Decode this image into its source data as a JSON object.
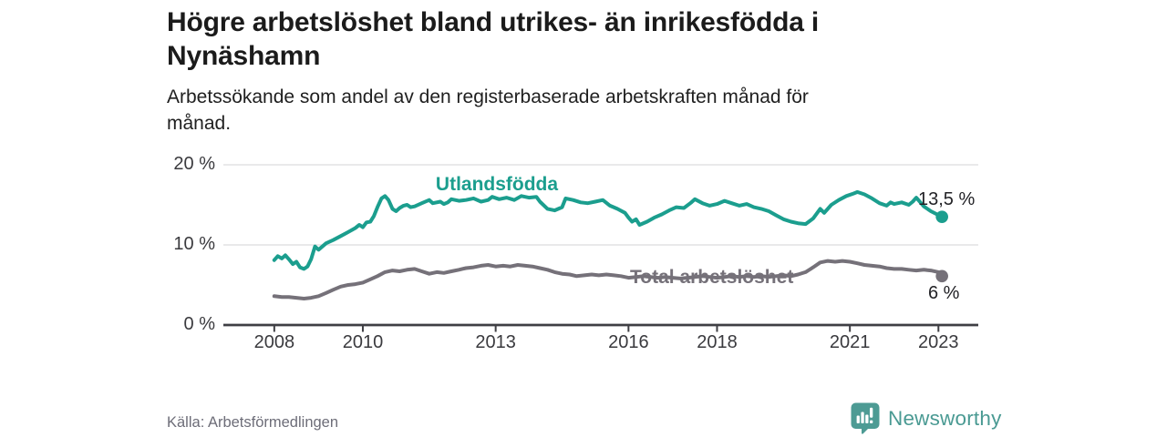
{
  "header": {
    "title_lines": [
      "Högre arbetslöshet bland utrikes- än inrikesfödda i",
      "Nynäshamn"
    ],
    "subtitle_lines": [
      "Arbetssökande som andel av den registerbaserade arbetskraften månad för",
      "månad."
    ]
  },
  "footer": {
    "source": "Källa: Arbetsförmedlingen",
    "brand": "Newsworthy",
    "logo_icon": "newsworthy-pin-barchart-icon"
  },
  "colors": {
    "foreign_born_line": "#1b9e8e",
    "total_line": "#757179",
    "axis": "#3f3f44",
    "grid": "#dcdcde",
    "tick_text": "#3a3a3e",
    "value_text": "#222226",
    "muted_text": "#6d6d78",
    "logo_teal": "#4d9b94"
  },
  "chart_data": {
    "type": "line",
    "title": "Högre arbetslöshet bland utrikes- än inrikesfödda i Nynäshamn",
    "subtitle": "Arbetssökande som andel av den registerbaserade arbetskraften månad för månad.",
    "source": "Källa: Arbetsförmedlingen",
    "unit": "%",
    "xlim": [
      2006.85,
      2023.9
    ],
    "ylim": [
      0,
      21.7
    ],
    "x_ticks": [
      2008,
      2010,
      2013,
      2016,
      2018,
      2021,
      2023
    ],
    "x_tick_labels": [
      "2008",
      "2010",
      "2013",
      "2016",
      "2018",
      "2021",
      "2023"
    ],
    "y_ticks": [
      0,
      10,
      20
    ],
    "y_tick_labels": [
      "0 %",
      "10 %",
      "20 %"
    ],
    "grid": "horizontal",
    "legend": "inline-labels",
    "series": [
      {
        "name": "Utlandsfödda",
        "color": "#1b9e8e",
        "end_label": "13,5 %",
        "end_value": 13.5,
        "points": [
          [
            2008.0,
            8.1
          ],
          [
            2008.08,
            8.6
          ],
          [
            2008.17,
            8.3
          ],
          [
            2008.25,
            8.7
          ],
          [
            2008.33,
            8.2
          ],
          [
            2008.42,
            7.6
          ],
          [
            2008.5,
            7.9
          ],
          [
            2008.58,
            7.2
          ],
          [
            2008.67,
            7.0
          ],
          [
            2008.75,
            7.3
          ],
          [
            2008.83,
            8.2
          ],
          [
            2008.92,
            9.8
          ],
          [
            2009.0,
            9.4
          ],
          [
            2009.17,
            10.2
          ],
          [
            2009.33,
            10.6
          ],
          [
            2009.5,
            11.1
          ],
          [
            2009.67,
            11.6
          ],
          [
            2009.83,
            12.1
          ],
          [
            2009.92,
            12.5
          ],
          [
            2010.0,
            12.2
          ],
          [
            2010.08,
            12.8
          ],
          [
            2010.17,
            12.9
          ],
          [
            2010.25,
            13.6
          ],
          [
            2010.33,
            14.7
          ],
          [
            2010.42,
            15.8
          ],
          [
            2010.5,
            16.1
          ],
          [
            2010.58,
            15.6
          ],
          [
            2010.67,
            14.5
          ],
          [
            2010.75,
            14.2
          ],
          [
            2010.83,
            14.6
          ],
          [
            2010.92,
            14.9
          ],
          [
            2011.0,
            15.0
          ],
          [
            2011.08,
            14.7
          ],
          [
            2011.17,
            14.8
          ],
          [
            2011.33,
            15.2
          ],
          [
            2011.5,
            15.6
          ],
          [
            2011.58,
            15.2
          ],
          [
            2011.75,
            15.4
          ],
          [
            2011.83,
            15.1
          ],
          [
            2011.92,
            15.3
          ],
          [
            2012.0,
            15.7
          ],
          [
            2012.17,
            15.5
          ],
          [
            2012.33,
            15.6
          ],
          [
            2012.5,
            15.8
          ],
          [
            2012.67,
            15.4
          ],
          [
            2012.83,
            15.6
          ],
          [
            2012.92,
            16.0
          ],
          [
            2013.08,
            15.7
          ],
          [
            2013.25,
            15.9
          ],
          [
            2013.42,
            15.6
          ],
          [
            2013.58,
            16.1
          ],
          [
            2013.75,
            15.9
          ],
          [
            2013.92,
            16.0
          ],
          [
            2014.0,
            15.4
          ],
          [
            2014.17,
            14.5
          ],
          [
            2014.33,
            14.3
          ],
          [
            2014.5,
            14.7
          ],
          [
            2014.58,
            15.8
          ],
          [
            2014.75,
            15.6
          ],
          [
            2014.92,
            15.3
          ],
          [
            2015.08,
            15.2
          ],
          [
            2015.25,
            15.4
          ],
          [
            2015.42,
            15.6
          ],
          [
            2015.58,
            14.9
          ],
          [
            2015.75,
            14.5
          ],
          [
            2015.92,
            14.0
          ],
          [
            2016.0,
            13.4
          ],
          [
            2016.08,
            12.9
          ],
          [
            2016.17,
            13.2
          ],
          [
            2016.25,
            12.5
          ],
          [
            2016.42,
            12.9
          ],
          [
            2016.58,
            13.4
          ],
          [
            2016.75,
            13.8
          ],
          [
            2016.92,
            14.3
          ],
          [
            2017.08,
            14.7
          ],
          [
            2017.25,
            14.6
          ],
          [
            2017.42,
            15.3
          ],
          [
            2017.5,
            15.7
          ],
          [
            2017.67,
            15.2
          ],
          [
            2017.83,
            14.9
          ],
          [
            2018.0,
            15.1
          ],
          [
            2018.17,
            15.5
          ],
          [
            2018.33,
            15.2
          ],
          [
            2018.5,
            14.9
          ],
          [
            2018.67,
            15.1
          ],
          [
            2018.83,
            14.7
          ],
          [
            2019.0,
            14.5
          ],
          [
            2019.17,
            14.2
          ],
          [
            2019.33,
            13.7
          ],
          [
            2019.5,
            13.2
          ],
          [
            2019.67,
            12.9
          ],
          [
            2019.83,
            12.7
          ],
          [
            2020.0,
            12.6
          ],
          [
            2020.17,
            13.3
          ],
          [
            2020.33,
            14.5
          ],
          [
            2020.42,
            14.0
          ],
          [
            2020.58,
            15.0
          ],
          [
            2020.75,
            15.6
          ],
          [
            2020.92,
            16.1
          ],
          [
            2021.08,
            16.4
          ],
          [
            2021.17,
            16.6
          ],
          [
            2021.33,
            16.3
          ],
          [
            2021.5,
            15.8
          ],
          [
            2021.67,
            15.2
          ],
          [
            2021.83,
            14.9
          ],
          [
            2021.92,
            15.3
          ],
          [
            2022.0,
            15.1
          ],
          [
            2022.17,
            15.3
          ],
          [
            2022.33,
            15.0
          ],
          [
            2022.42,
            15.4
          ],
          [
            2022.5,
            15.9
          ],
          [
            2022.67,
            14.8
          ],
          [
            2022.83,
            14.2
          ],
          [
            2023.08,
            13.5
          ]
        ]
      },
      {
        "name": "Total arbetslöshet",
        "color": "#757179",
        "end_label": "6 %",
        "end_value": 6.1,
        "points": [
          [
            2008.0,
            3.6
          ],
          [
            2008.17,
            3.5
          ],
          [
            2008.33,
            3.5
          ],
          [
            2008.5,
            3.4
          ],
          [
            2008.67,
            3.3
          ],
          [
            2008.83,
            3.4
          ],
          [
            2009.0,
            3.6
          ],
          [
            2009.17,
            4.0
          ],
          [
            2009.33,
            4.4
          ],
          [
            2009.5,
            4.8
          ],
          [
            2009.67,
            5.0
          ],
          [
            2009.83,
            5.1
          ],
          [
            2010.0,
            5.3
          ],
          [
            2010.17,
            5.7
          ],
          [
            2010.33,
            6.1
          ],
          [
            2010.5,
            6.6
          ],
          [
            2010.67,
            6.8
          ],
          [
            2010.83,
            6.7
          ],
          [
            2011.0,
            6.9
          ],
          [
            2011.17,
            7.0
          ],
          [
            2011.33,
            6.7
          ],
          [
            2011.5,
            6.4
          ],
          [
            2011.67,
            6.6
          ],
          [
            2011.83,
            6.5
          ],
          [
            2012.0,
            6.7
          ],
          [
            2012.17,
            6.9
          ],
          [
            2012.33,
            7.1
          ],
          [
            2012.5,
            7.2
          ],
          [
            2012.67,
            7.4
          ],
          [
            2012.83,
            7.5
          ],
          [
            2013.0,
            7.3
          ],
          [
            2013.17,
            7.4
          ],
          [
            2013.33,
            7.3
          ],
          [
            2013.5,
            7.5
          ],
          [
            2013.67,
            7.4
          ],
          [
            2013.83,
            7.3
          ],
          [
            2014.0,
            7.1
          ],
          [
            2014.17,
            6.9
          ],
          [
            2014.33,
            6.6
          ],
          [
            2014.5,
            6.4
          ],
          [
            2014.67,
            6.3
          ],
          [
            2014.83,
            6.1
          ],
          [
            2015.0,
            6.2
          ],
          [
            2015.17,
            6.3
          ],
          [
            2015.33,
            6.2
          ],
          [
            2015.5,
            6.3
          ],
          [
            2015.67,
            6.2
          ],
          [
            2015.83,
            6.1
          ],
          [
            2016.0,
            5.9
          ],
          [
            2016.17,
            6.0
          ],
          [
            2016.33,
            6.1
          ],
          [
            2016.5,
            6.0
          ],
          [
            2016.67,
            5.9
          ],
          [
            2016.83,
            6.0
          ],
          [
            2017.0,
            5.9
          ],
          [
            2017.17,
            5.8
          ],
          [
            2017.33,
            5.9
          ],
          [
            2017.5,
            6.0
          ],
          [
            2017.67,
            6.1
          ],
          [
            2017.83,
            6.0
          ],
          [
            2018.0,
            5.9
          ],
          [
            2018.17,
            6.0
          ],
          [
            2018.33,
            6.1
          ],
          [
            2018.5,
            6.0
          ],
          [
            2018.67,
            6.1
          ],
          [
            2018.83,
            6.0
          ],
          [
            2019.0,
            6.1
          ],
          [
            2019.17,
            6.0
          ],
          [
            2019.33,
            6.1
          ],
          [
            2019.5,
            6.2
          ],
          [
            2019.67,
            6.1
          ],
          [
            2019.83,
            6.3
          ],
          [
            2020.0,
            6.6
          ],
          [
            2020.17,
            7.2
          ],
          [
            2020.33,
            7.8
          ],
          [
            2020.5,
            8.0
          ],
          [
            2020.67,
            7.9
          ],
          [
            2020.83,
            8.0
          ],
          [
            2021.0,
            7.9
          ],
          [
            2021.17,
            7.7
          ],
          [
            2021.33,
            7.5
          ],
          [
            2021.5,
            7.4
          ],
          [
            2021.67,
            7.3
          ],
          [
            2021.83,
            7.1
          ],
          [
            2022.0,
            7.0
          ],
          [
            2022.17,
            7.0
          ],
          [
            2022.33,
            6.9
          ],
          [
            2022.5,
            6.8
          ],
          [
            2022.67,
            6.9
          ],
          [
            2022.83,
            6.8
          ],
          [
            2023.0,
            6.6
          ],
          [
            2023.08,
            6.1
          ]
        ]
      }
    ]
  }
}
